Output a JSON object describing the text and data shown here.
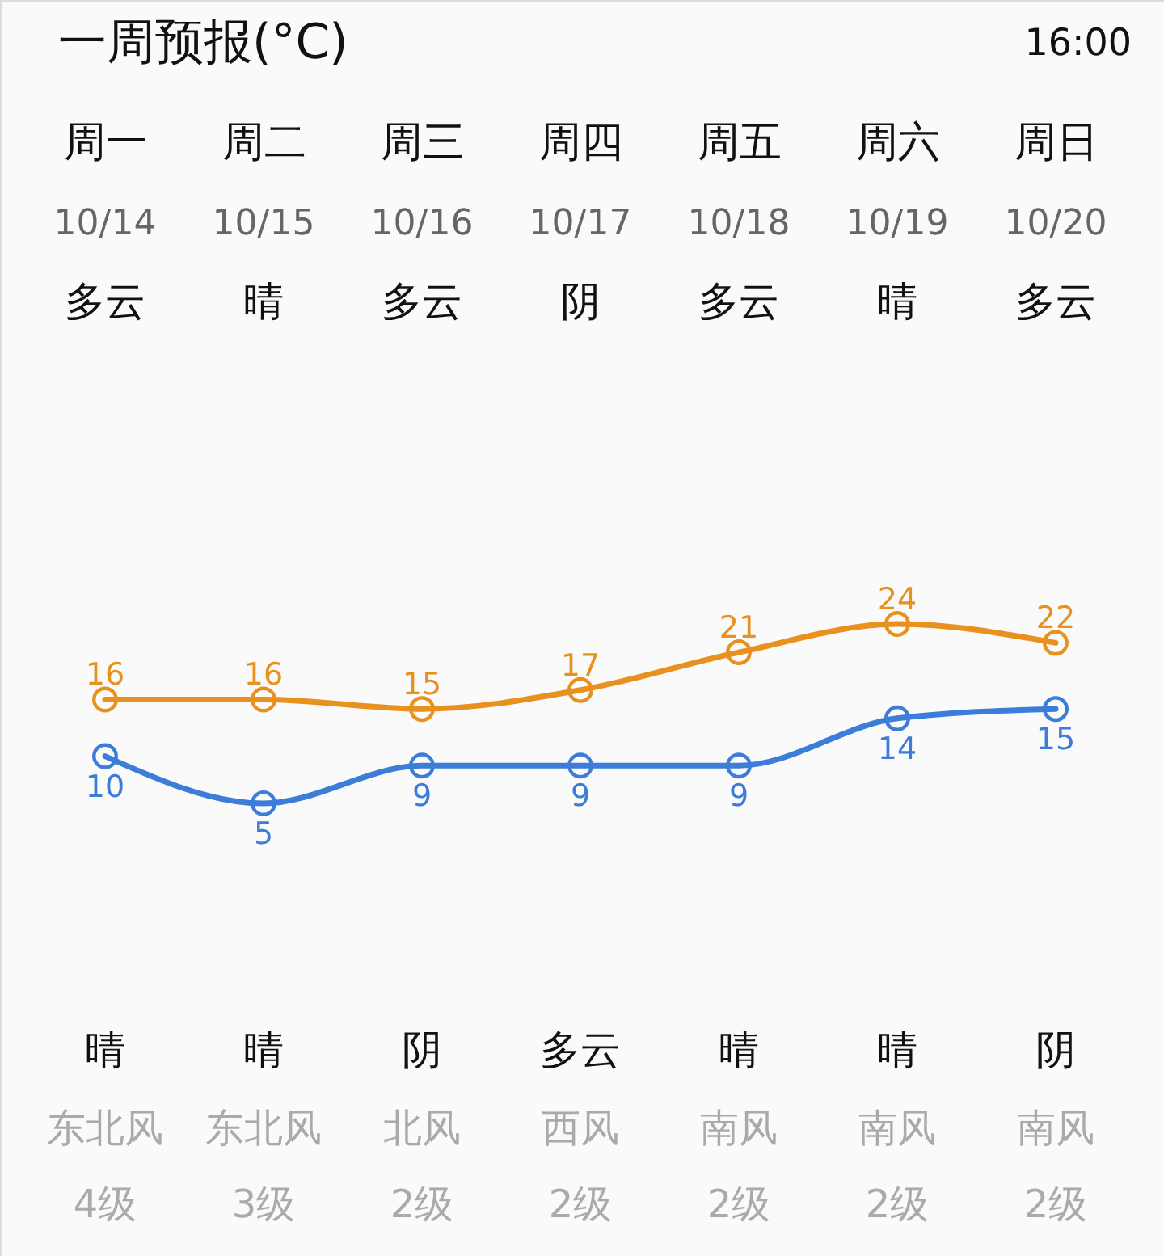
{
  "chart_data": {
    "type": "line",
    "title": "一周预报(°C)",
    "categories": [
      "周一",
      "周二",
      "周三",
      "周四",
      "周五",
      "周六",
      "周日"
    ],
    "series": [
      {
        "color": "#e8911e",
        "values": [
          16,
          16,
          15,
          17,
          21,
          24,
          22
        ]
      },
      {
        "color": "#3b7dd8",
        "values": [
          10,
          5,
          9,
          9,
          9,
          14,
          15
        ]
      }
    ],
    "tick_labels": "x",
    "marker": "circle",
    "line_style": "solid",
    "data_labels": true,
    "annotations": [
      "16:00",
      "10/14",
      "10/15",
      "10/16",
      "10/17",
      "10/18",
      "10/19",
      "10/20",
      "多云",
      "晴",
      "多云",
      "阴",
      "多云",
      "晴",
      "多云",
      "晴",
      "晴",
      "阴",
      "多云",
      "晴",
      "晴",
      "阴",
      "东北风",
      "东北风",
      "北风",
      "西风",
      "南风",
      "南风",
      "南风",
      "4级",
      "3级",
      "2级",
      "2级",
      "2级",
      "2级",
      "2级"
    ]
  }
}
